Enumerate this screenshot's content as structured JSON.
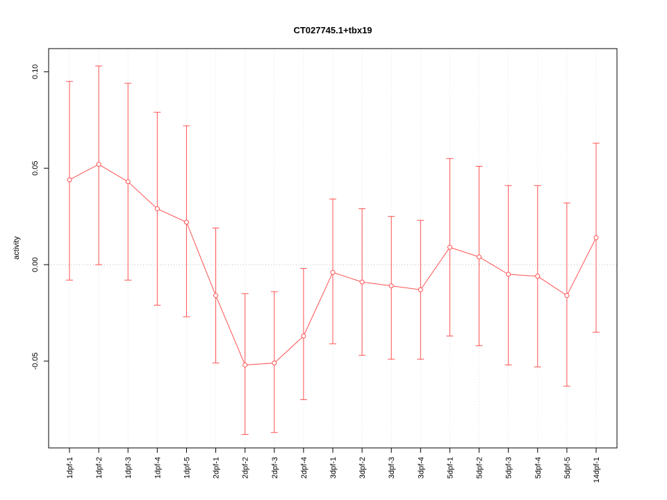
{
  "chart_data": {
    "type": "line",
    "title": "CT027745.1+tbx19",
    "xlabel": "",
    "ylabel": "activity",
    "categories": [
      "1dpf-1",
      "1dpf-2",
      "1dpf-3",
      "1dpf-4",
      "1dpf-5",
      "2dpf-1",
      "2dpf-2",
      "2dpf-3",
      "2dpf-4",
      "3dpf-1",
      "3dpf-2",
      "3dpf-3",
      "3dpf-4",
      "5dpf-1",
      "5dpf-2",
      "5dpf-3",
      "5dpf-4",
      "5dpf-5",
      "14dpf-1"
    ],
    "series": [
      {
        "name": "activity",
        "values": [
          0.044,
          0.052,
          0.043,
          0.029,
          0.022,
          -0.016,
          -0.052,
          -0.051,
          -0.037,
          -0.004,
          -0.009,
          -0.011,
          -0.013,
          0.009,
          0.004,
          -0.005,
          -0.006,
          -0.016,
          0.014
        ],
        "upper": [
          0.095,
          0.103,
          0.094,
          0.079,
          0.072,
          0.019,
          -0.015,
          -0.014,
          -0.002,
          0.034,
          0.029,
          0.025,
          0.023,
          0.055,
          0.051,
          0.041,
          0.041,
          0.032,
          0.063
        ],
        "lower": [
          -0.008,
          0.0,
          -0.008,
          -0.021,
          -0.027,
          -0.051,
          -0.088,
          -0.087,
          -0.07,
          -0.041,
          -0.047,
          -0.049,
          -0.049,
          -0.037,
          -0.042,
          -0.052,
          -0.053,
          -0.063,
          -0.035
        ]
      }
    ],
    "yticks": [
      -0.05,
      0.0,
      0.05,
      0.1
    ],
    "ytick_labels": [
      "-0.05",
      "0.00",
      "0.05",
      "0.10"
    ],
    "ylim": [
      -0.095,
      0.112
    ],
    "grid": "faint vertical dotted lines at each category; dotted horizontal reference line at y=0",
    "zero_line": 0,
    "legend_position": "none",
    "colors": {
      "series": "#ff5050",
      "point_fill": "#ffffff",
      "grid": "#e0e0e0",
      "zero_line": "#bbbbbb",
      "axis": "#000000",
      "text": "#000000",
      "background": "#ffffff"
    }
  }
}
